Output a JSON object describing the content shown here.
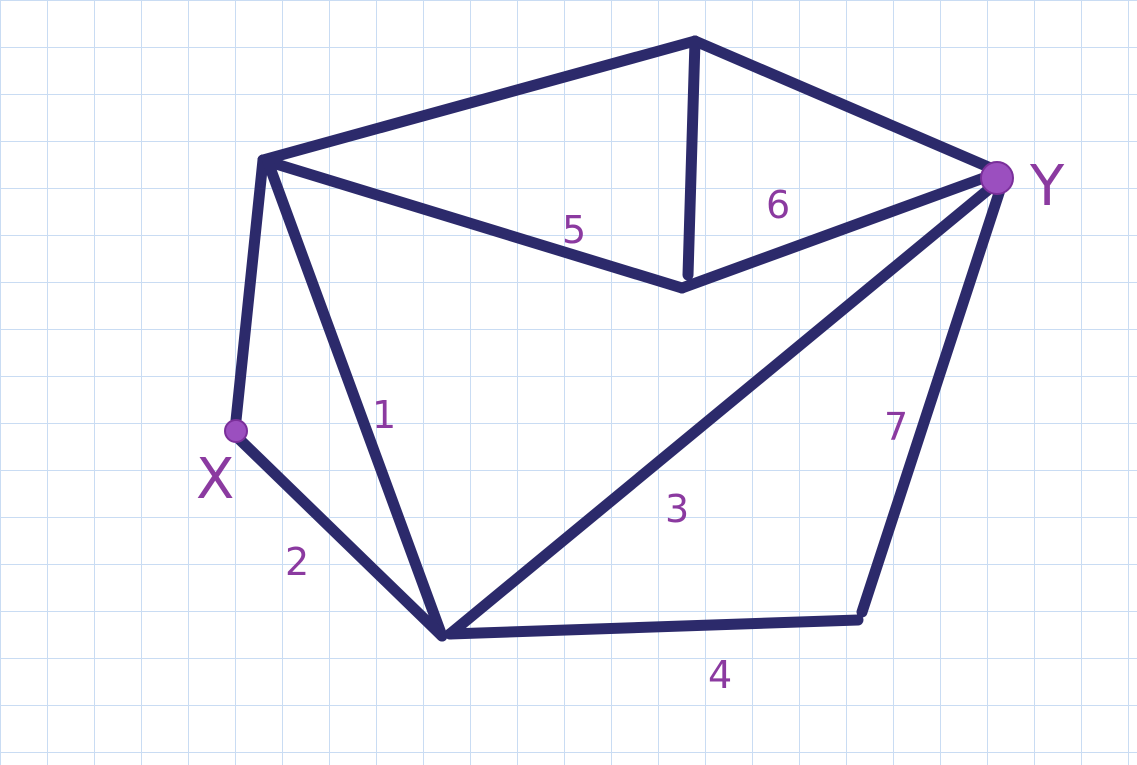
{
  "diagram": {
    "type": "graph",
    "colors": {
      "edge": "#2c2a6b",
      "label": "#8b3aa0",
      "marker": "#9b4fbf"
    },
    "nodes": [
      {
        "id": "X",
        "label": "X",
        "marked": true
      },
      {
        "id": "Y",
        "label": "Y",
        "marked": true
      }
    ],
    "edge_labels": [
      "1",
      "2",
      "3",
      "4",
      "5",
      "6",
      "7"
    ]
  }
}
